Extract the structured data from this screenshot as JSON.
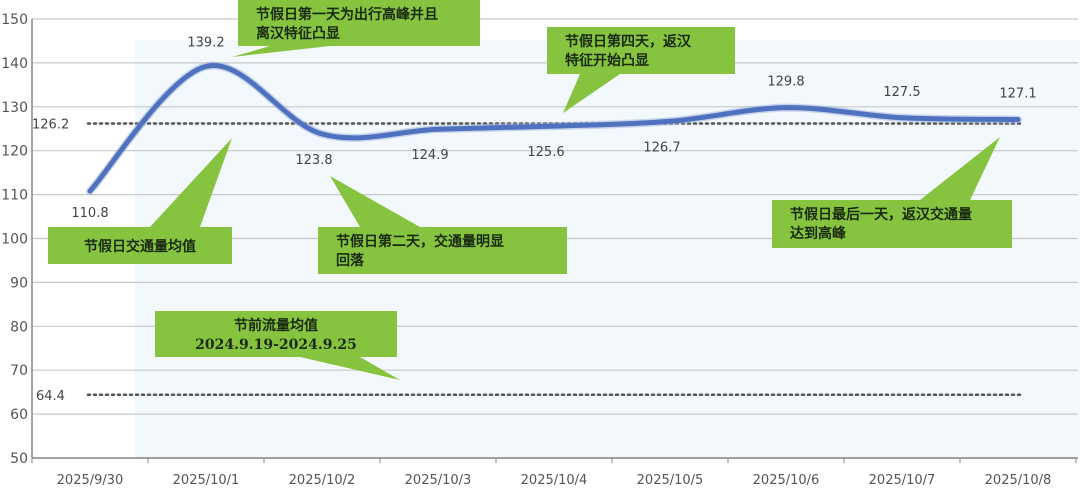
{
  "chart_data": {
    "type": "line",
    "categories": [
      "2025/9/30",
      "2025/10/1",
      "2025/10/2",
      "2025/10/3",
      "2025/10/4",
      "2025/10/5",
      "2025/10/6",
      "2025/10/7",
      "2025/10/8"
    ],
    "values": [
      110.8,
      139.2,
      123.8,
      124.9,
      125.6,
      126.7,
      129.8,
      127.5,
      127.1
    ],
    "data_labels": [
      "110.8",
      "139.2",
      "123.8",
      "124.9",
      "125.6",
      "126.7",
      "129.8",
      "127.5",
      "127.1"
    ],
    "ylim": [
      50,
      150
    ],
    "yticks": [
      50,
      60,
      70,
      80,
      90,
      100,
      110,
      120,
      130,
      140,
      150
    ],
    "grid": true,
    "line_color": "#4f72c0",
    "reference_lines": [
      {
        "value": 126.2,
        "label": "126.2",
        "style": "dotted"
      },
      {
        "value": 64.4,
        "label": "64.4",
        "style": "dotted"
      }
    ],
    "annotations": [
      {
        "lines": [
          "节假日第一天为出行高峰并且",
          "离汉特征凸显"
        ]
      },
      {
        "lines": [
          "节假日交通量均值"
        ]
      },
      {
        "lines": [
          "节假日第二天，交通量明显",
          "回落"
        ]
      },
      {
        "lines": [
          "节假日第四天，返汉",
          "特征开始凸显"
        ]
      },
      {
        "lines": [
          "节假日最后一天，返汉交通量",
          "达到高峰"
        ]
      },
      {
        "lines": [
          "节前流量均值",
          "2024.9.19-2024.9.25"
        ]
      }
    ],
    "annotation_color": "#86c440"
  }
}
